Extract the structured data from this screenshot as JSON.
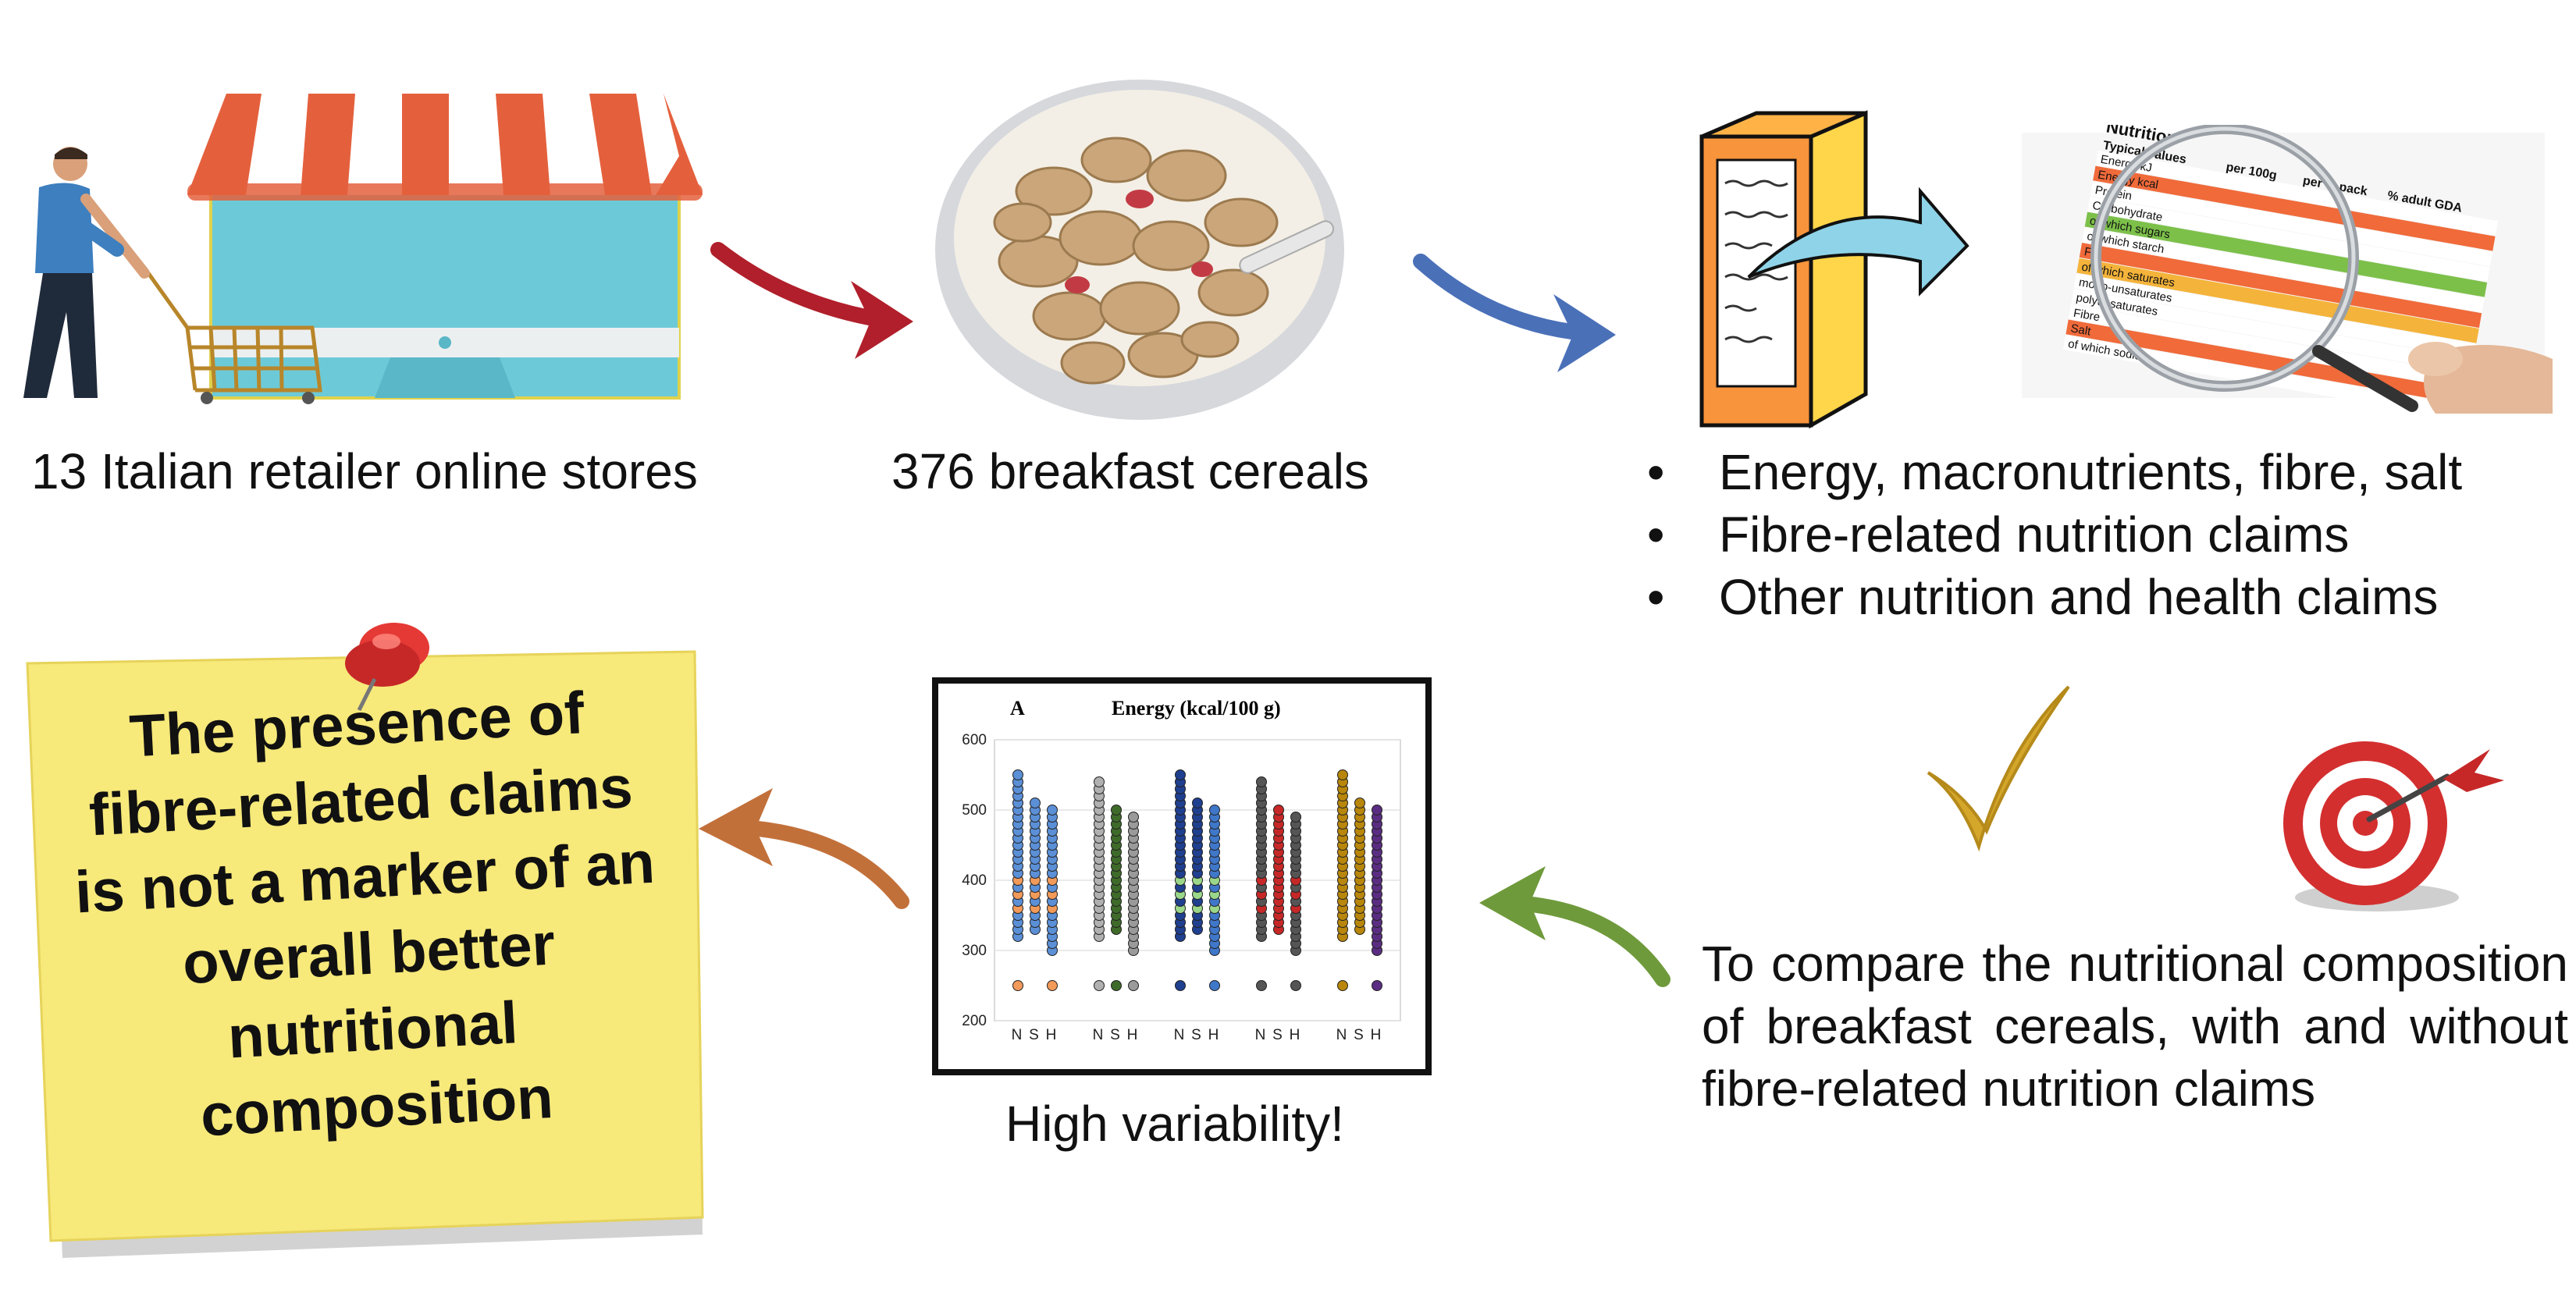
{
  "captions": {
    "stores": "13 Italian retailer online stores",
    "cereals": "376 breakfast cereals",
    "variability": "High variability!"
  },
  "bullets": [
    "Energy, macronutrients, fibre, salt",
    "Fibre-related nutrition claims",
    "Other nutrition and health claims"
  ],
  "aim": "To compare the nutritional composition of breakfast cereals, with and without fibre-related nutrition claims",
  "conclusion": "The presence of fibre-related claims is not a marker of an overall better nutritional composition",
  "nutrition_label": {
    "title": "Nutrition",
    "subtitle": "Typical values",
    "col_100g": "per 100g",
    "col_pack": "per ¼ pack",
    "col_gda": "% adult GDA",
    "rows": [
      "Energy kJ",
      "Energy kcal",
      "Protein",
      "Carbohydrate",
      "of which sugars",
      "of which starch",
      "Fat",
      "of which saturates",
      "mono-unsaturates",
      "polyunsaturates",
      "Fibre",
      "Salt",
      "of which sodium"
    ]
  },
  "chart_data": {
    "type": "scatter",
    "panel_label": "A",
    "title": "Energy (kcal/100 g)",
    "ylim": [
      200,
      600
    ],
    "yticks": [
      200,
      300,
      400,
      500,
      600
    ],
    "group_labels": [
      "N",
      "S",
      "H"
    ],
    "groups": 5,
    "grid": true,
    "colors": [
      "#5b8fd6",
      "#a9a9a9",
      "#3f6b2a",
      "#1f3f8f",
      "#555555",
      "#b8860b"
    ]
  },
  "colors": {
    "red_arrow": "#b01f2b",
    "blue_arrow": "#4a70b8",
    "green_arrow": "#6f9a3c",
    "orange_arrow": "#c2703a",
    "yellow_check": "#d4a62a",
    "note": "#f7e97a"
  },
  "icons": {
    "store": "online-store-icon",
    "shopper": "shopper-cart-icon",
    "bowl": "cereal-bowl-icon",
    "box": "cereal-box-icon",
    "magnifier": "magnifier-label-icon",
    "target": "target-dart-icon",
    "check": "checkmark-icon",
    "pin": "push-pin-icon"
  }
}
